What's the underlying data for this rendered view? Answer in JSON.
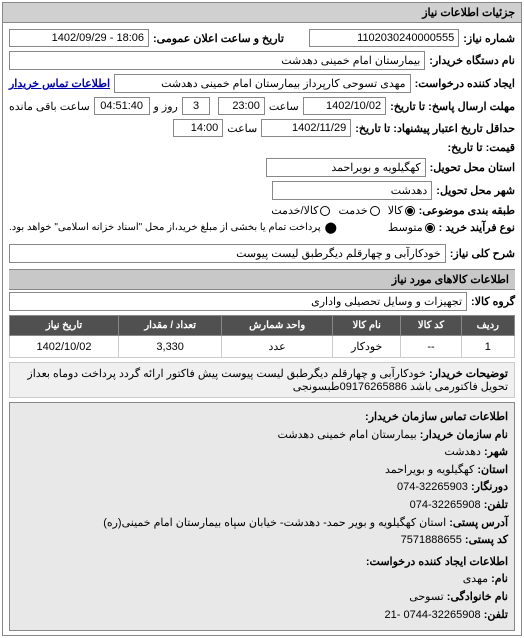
{
  "panel_title": "جزئیات اطلاعات نیاز",
  "fields": {
    "request_number_label": "شماره نیاز:",
    "request_number": "1102030240000555",
    "announce_label": "تاریخ و ساعت اعلان عمومی:",
    "announce_value": "18:06 - 1402/09/29",
    "buyer_label": "نام دستگاه خریدار:",
    "buyer_value": "بیمارستان امام خمینی دهدشت",
    "creator_label": "ایجاد کننده درخواست:",
    "creator_value": "مهدی تسوحی کارپرداز بیمارستان امام خمینی دهدشت",
    "buyer_contact_label": "اطلاعات تماس خریدار",
    "reply_deadline_label": "مهلت ارسال پاسخ: تا تاریخ:",
    "reply_date": "1402/10/02",
    "reply_time_label": "ساعت",
    "reply_time": "23:00",
    "remain_label1": "روز و",
    "remain_days": "3",
    "remain_label2": "ساعت باقی مانده",
    "remain_time": "04:51:40",
    "validity_label": "حداقل تاریخ اعتبار پیشنهاد: تا تاریخ:",
    "validity_date": "1402/11/29",
    "validity_time_label": "ساعت",
    "validity_time": "14:00",
    "price_label": "قیمت: تا تاریخ:",
    "province_label": "استان محل تحویل:",
    "province_value": "کهگیلویه و بویراحمد",
    "city_label": "شهر محل تحویل:",
    "city_value": "دهدشت",
    "budget_label": "طبقه بندی موضوعی:",
    "budget_opt1": "کالا",
    "budget_opt2": "خدمت",
    "budget_opt3": "کالا/خدمت",
    "process_label": "نوع فرآیند خرید :",
    "process_opt1": "متوسط",
    "process_note_icon": "⬤",
    "process_note": "پرداخت تمام یا بخشی از مبلغ خرید،از محل \"اسناد خزانه اسلامی\" خواهد بود.",
    "need_title_label": "شرح کلی نیاز:",
    "need_title_value": "خودکارآبی و چهارقلم دیگرطبق لیست پیوست",
    "items_section": "اطلاعات کالاهای مورد نیاز",
    "group_label": "گروه کالا:",
    "group_value": "تجهیزات و وسایل تحصیلی واداری",
    "buyer_note_label": "توضیحات خریدار:",
    "buyer_note_value": "خودکارآبی و چهارقلم دیگرطبق لیست پیوست پیش فاکتور ارائه گردد پرداخت دوماه بعداز تحویل فاکتورمی باشد 09176265886طبسونجی"
  },
  "table": {
    "headers": [
      "ردیف",
      "کد کالا",
      "نام کالا",
      "واحد شمارش",
      "تعداد / مقدار",
      "تاریخ نیاز"
    ],
    "rows": [
      [
        "1",
        "--",
        "خودکار",
        "عدد",
        "3,330",
        "1402/10/02"
      ]
    ]
  },
  "contact": {
    "header": "اطلاعات تماس سازمان خریدار:",
    "org_label": "نام سازمان خریدار:",
    "org_value": "بیمارستان امام خمینی دهدشت",
    "city_label": "شهر:",
    "city_value": "دهدشت",
    "province_label": "استان:",
    "province_value": "کهگیلویه و بویراحمد",
    "fax_label": "دورنگار:",
    "fax_value": "32265903-074",
    "phone_label": "تلفن:",
    "phone_value": "32265908-074",
    "address_label": "آدرس پستی:",
    "address_value": "استان کهگیلویه و بویر حمد- دهدشت- خیابان سپاه بیمارستان امام خمینی(ره)",
    "postal_label": "کد پستی:",
    "postal_value": "7571888655",
    "creator_contact_header": "اطلاعات ایجاد کننده درخواست:",
    "name_label": "نام:",
    "name_value": "مهدی",
    "lastname_label": "نام خانوادگی:",
    "lastname_value": "تسوحی",
    "tel_label": "تلفن:",
    "tel_value": "32265908-0744",
    "ext_label": "-21"
  }
}
